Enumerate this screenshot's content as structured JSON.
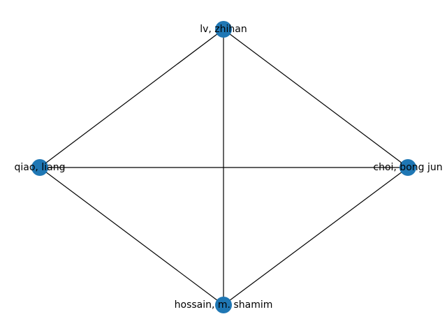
{
  "graph": {
    "node_color": "#1f77b4",
    "edge_color": "#000000",
    "nodes": [
      {
        "id": "lv",
        "label": "lv, zhihan"
      },
      {
        "id": "qiao",
        "label": "qiao, liang"
      },
      {
        "id": "choi",
        "label": "choi, bong jun"
      },
      {
        "id": "hossain",
        "label": "hossain, m. shamim"
      }
    ],
    "edges": [
      {
        "source": "lv",
        "target": "qiao"
      },
      {
        "source": "lv",
        "target": "choi"
      },
      {
        "source": "lv",
        "target": "hossain"
      },
      {
        "source": "qiao",
        "target": "choi"
      },
      {
        "source": "qiao",
        "target": "hossain"
      },
      {
        "source": "choi",
        "target": "hossain"
      }
    ]
  }
}
